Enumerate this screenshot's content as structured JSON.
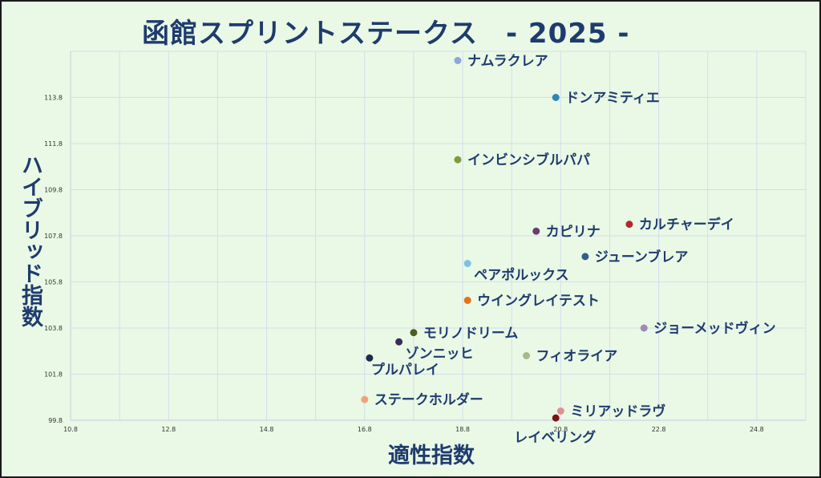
{
  "chart_data": {
    "type": "scatter",
    "title": "函館スプリントステークス　- 2025 -",
    "xlabel": "適性指数",
    "ylabel": "ハイブリッド指数",
    "xlim": [
      10.8,
      25.8
    ],
    "ylim": [
      99.8,
      115.8
    ],
    "xticks": [
      "10.8",
      "12.8",
      "14.8",
      "16.8",
      "18.8",
      "20.8",
      "22.8",
      "24.8"
    ],
    "yticks": [
      "99.8",
      "101.8",
      "103.8",
      "105.8",
      "107.8",
      "109.8",
      "111.8",
      "113.8"
    ],
    "grid": true,
    "points": [
      {
        "name": "ナムラクレア",
        "x": 18.7,
        "y": 115.4,
        "color": "#8fa6d8"
      },
      {
        "name": "ドンアミティエ",
        "x": 20.7,
        "y": 113.8,
        "color": "#2f86b8"
      },
      {
        "name": "インビンシブルパパ",
        "x": 18.7,
        "y": 111.1,
        "color": "#7f9a3c"
      },
      {
        "name": "カルチャーデイ",
        "x": 22.2,
        "y": 108.3,
        "color": "#b22a2a"
      },
      {
        "name": "カピリナ",
        "x": 20.3,
        "y": 108.0,
        "color": "#6a3d6e"
      },
      {
        "name": "ジューンブレア",
        "x": 21.3,
        "y": 106.9,
        "color": "#2f5f8a"
      },
      {
        "name": "ペアポルックス",
        "x": 18.9,
        "y": 106.6,
        "color": "#7ec0e0"
      },
      {
        "name": "ウイングレイテスト",
        "x": 18.9,
        "y": 105.0,
        "color": "#e8701c"
      },
      {
        "name": "ジョーメッドヴィン",
        "x": 22.5,
        "y": 103.8,
        "color": "#a08ab8"
      },
      {
        "name": "モリノドリーム",
        "x": 17.8,
        "y": 103.6,
        "color": "#4e5e1e"
      },
      {
        "name": "ゾンニッヒ",
        "x": 17.5,
        "y": 103.2,
        "color": "#3a2a5a"
      },
      {
        "name": "フィオライア",
        "x": 20.1,
        "y": 102.6,
        "color": "#a8b888"
      },
      {
        "name": "プルパレイ",
        "x": 16.9,
        "y": 102.5,
        "color": "#1f2a4a"
      },
      {
        "name": "ステークホルダー",
        "x": 16.8,
        "y": 100.7,
        "color": "#f0a080"
      },
      {
        "name": "ミリアッドラヴ",
        "x": 20.8,
        "y": 100.2,
        "color": "#e09090"
      },
      {
        "name": "レイベリング",
        "x": 20.7,
        "y": 99.9,
        "color": "#7a1414"
      }
    ]
  }
}
